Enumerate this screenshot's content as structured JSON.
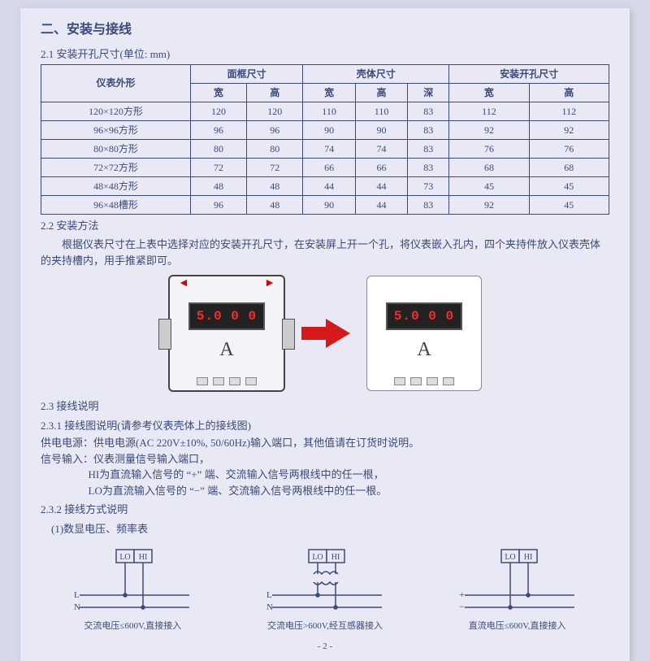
{
  "title": "二、安装与接线",
  "s21": {
    "head": "2.1 安装开孔尺寸(单位: mm)",
    "table": {
      "header_row1": [
        "仪表外形",
        "面框尺寸",
        "壳体尺寸",
        "安装开孔尺寸"
      ],
      "header_row2": [
        "宽",
        "高",
        "宽",
        "高",
        "深",
        "宽",
        "高"
      ],
      "rows": [
        [
          "120×120方形",
          "120",
          "120",
          "110",
          "110",
          "83",
          "112",
          "112"
        ],
        [
          "96×96方形",
          "96",
          "96",
          "90",
          "90",
          "83",
          "92",
          "92"
        ],
        [
          "80×80方形",
          "80",
          "80",
          "74",
          "74",
          "83",
          "76",
          "76"
        ],
        [
          "72×72方形",
          "72",
          "72",
          "66",
          "66",
          "83",
          "68",
          "68"
        ],
        [
          "48×48方形",
          "48",
          "48",
          "44",
          "44",
          "73",
          "45",
          "45"
        ],
        [
          "96×48槽形",
          "96",
          "48",
          "90",
          "44",
          "83",
          "92",
          "45"
        ]
      ]
    }
  },
  "s22": {
    "head": "2.2 安装方法",
    "text": "根据仪表尺寸在上表中选择对应的安装开孔尺寸，在安装屏上开一个孔，将仪表嵌入孔内，四个夹持件放入仪表壳体的夹持槽内，用手推紧即可。"
  },
  "fig": {
    "lcd_value": "5.0 0 0",
    "unit": "A",
    "arrow_color": "#d61a1a"
  },
  "s23": {
    "head": "2.3 接线说明",
    "s231_head": "2.3.1 接线图说明(请参考仪表壳体上的接线图)",
    "power_label": "供电电源：",
    "power_text": "供电电源(AC 220V±10%, 50/60Hz)输入端口，其他值请在订货时说明。",
    "signal_label": "信号输入：",
    "signal_text": "仪表测量信号输入端口，",
    "hi_text": "HI为直流输入信号的 “+” 端、交流输入信号两根线中的任一根，",
    "lo_text": "LO为直流输入信号的 “−” 端、交流输入信号两根线中的任一根。",
    "s232_head": "2.3.2 接线方式说明",
    "case1": "(1)数显电压、频率表"
  },
  "wires": {
    "labels": {
      "LO": "LO",
      "HI": "HI",
      "L": "L",
      "N": "N",
      "plus": "+",
      "minus": "−"
    },
    "cap1": "交流电压≤600V,直接接入",
    "cap2": "交流电压>600V,经互感器接入",
    "cap3": "直流电压≤600V,直接接入",
    "stroke": "#3a4a7a"
  },
  "page_number": "- 2 -"
}
